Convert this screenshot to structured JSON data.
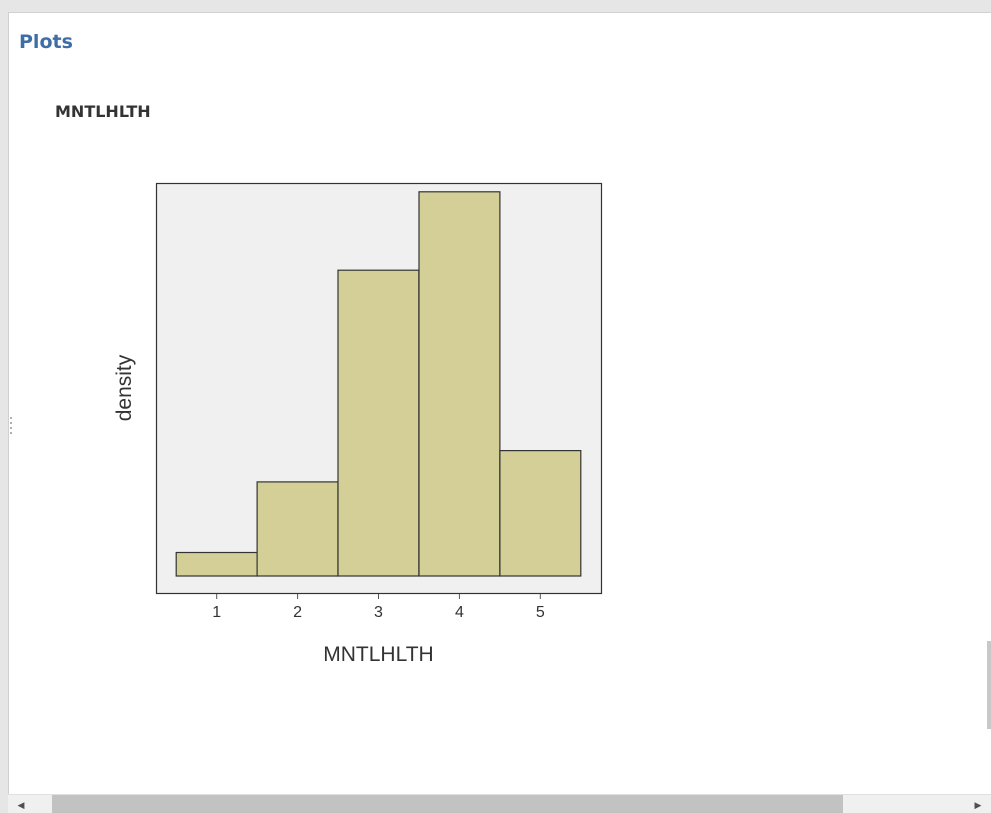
{
  "output": {
    "section_title": "Plots",
    "variable_title": "MNTLHLTH"
  },
  "chart_data": {
    "type": "bar",
    "title": "",
    "xlabel": "MNTLHLTH",
    "ylabel": "density",
    "categories": [
      "1",
      "2",
      "3",
      "4",
      "5"
    ],
    "values": [
      0.03,
      0.12,
      0.39,
      0.49,
      0.16
    ],
    "xlim": [
      0.25,
      5.75
    ],
    "ylim": [
      0,
      0.5
    ],
    "grid": false,
    "y_tick_labels_shown": false,
    "colors": {
      "bar_fill": "#d3cf97",
      "bar_stroke": "#333333",
      "plot_background": "#f0f0f0",
      "frame": "#333333"
    }
  },
  "scrollbar": {
    "left_arrow": "◀",
    "right_arrow": "▶"
  }
}
